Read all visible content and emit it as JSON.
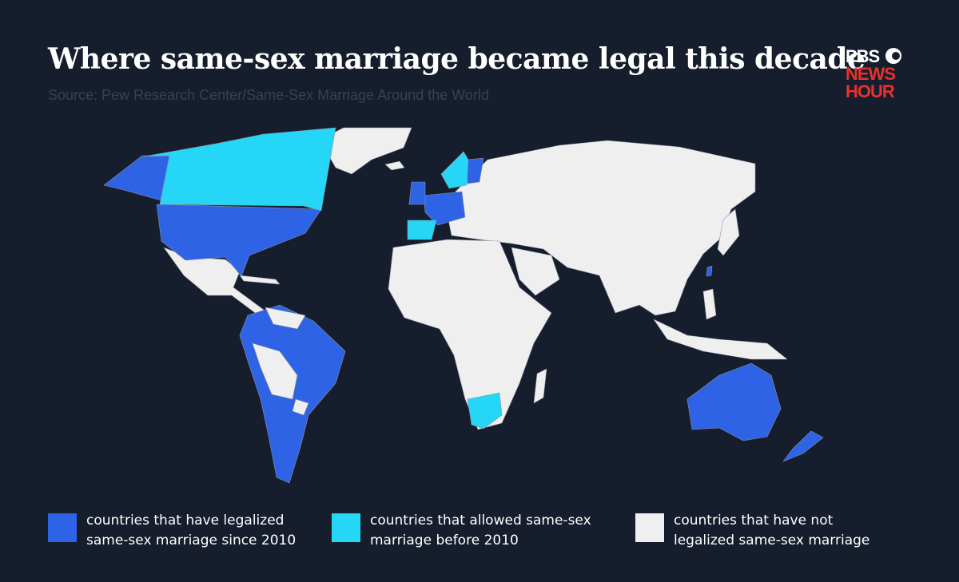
{
  "header": {
    "title": "Where same-sex marriage became legal this decade",
    "source": "Source: Pew Research Center/Same-Sex Marriage Around the World"
  },
  "logo": {
    "line1": "PBS",
    "line2": "NEWS",
    "line3": "HOUR"
  },
  "legend": {
    "items": [
      {
        "label_lines": [
          "countries that have legalized",
          "same-sex marriage since 2010"
        ],
        "color": "#2f63e6"
      },
      {
        "label_lines": [
          "countries that allowed same-sex",
          "marriage before 2010"
        ],
        "color": "#25d6f7"
      },
      {
        "label_lines": [
          "countries that have not",
          "legalized same-sex marriage"
        ],
        "color": "#efefef"
      }
    ]
  }
}
